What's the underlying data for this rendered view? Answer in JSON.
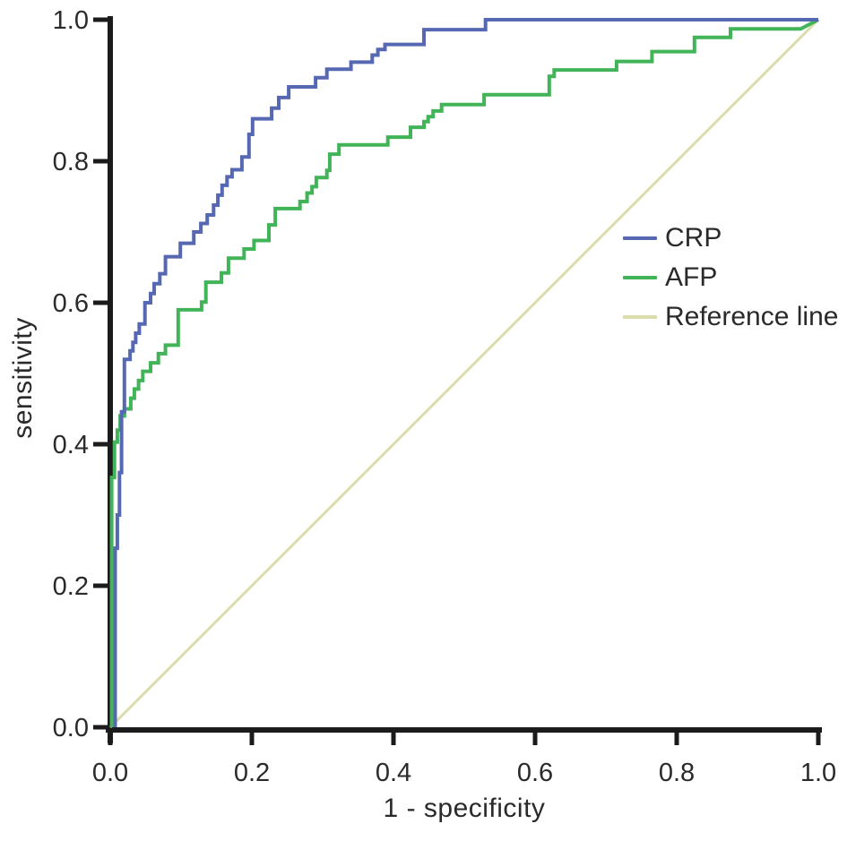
{
  "chart_data": {
    "type": "line",
    "subtype": "roc_curve",
    "title": "",
    "xlabel": "1 - specificity",
    "ylabel": "sensitivity",
    "xlim": [
      0.0,
      1.0
    ],
    "ylim": [
      0.0,
      1.0
    ],
    "x_ticks": [
      0.0,
      0.2,
      0.4,
      0.6,
      0.8,
      1.0
    ],
    "x_tick_labels": [
      "0.0",
      "0.2",
      "0.4",
      "0.6",
      "0.8",
      "1.0"
    ],
    "y_ticks": [
      0.0,
      0.2,
      0.4,
      0.6,
      0.8,
      1.0
    ],
    "y_tick_labels": [
      "0.0",
      "0.2",
      "0.4",
      "0.6",
      "0.8",
      "1.0"
    ],
    "grid": false,
    "legend_position": "inside-right-middle",
    "axis_color": "#1b1b1b",
    "text_color": "#2a2a2a",
    "series": [
      {
        "name": "CRP",
        "color": "#5668b2",
        "stroke_width": 4,
        "points": [
          [
            0.007,
            0.0
          ],
          [
            0.007,
            0.253
          ],
          [
            0.01,
            0.253
          ],
          [
            0.01,
            0.3
          ],
          [
            0.013,
            0.3
          ],
          [
            0.013,
            0.36
          ],
          [
            0.016,
            0.36
          ],
          [
            0.016,
            0.446
          ],
          [
            0.02,
            0.446
          ],
          [
            0.02,
            0.52
          ],
          [
            0.028,
            0.52
          ],
          [
            0.028,
            0.532
          ],
          [
            0.032,
            0.532
          ],
          [
            0.032,
            0.544
          ],
          [
            0.036,
            0.544
          ],
          [
            0.036,
            0.557
          ],
          [
            0.041,
            0.557
          ],
          [
            0.041,
            0.57
          ],
          [
            0.049,
            0.57
          ],
          [
            0.049,
            0.6
          ],
          [
            0.057,
            0.6
          ],
          [
            0.057,
            0.613
          ],
          [
            0.062,
            0.613
          ],
          [
            0.062,
            0.627
          ],
          [
            0.07,
            0.627
          ],
          [
            0.07,
            0.641
          ],
          [
            0.078,
            0.641
          ],
          [
            0.078,
            0.665
          ],
          [
            0.099,
            0.665
          ],
          [
            0.099,
            0.684
          ],
          [
            0.118,
            0.684
          ],
          [
            0.118,
            0.7
          ],
          [
            0.128,
            0.7
          ],
          [
            0.128,
            0.712
          ],
          [
            0.137,
            0.712
          ],
          [
            0.137,
            0.724
          ],
          [
            0.146,
            0.724
          ],
          [
            0.146,
            0.738
          ],
          [
            0.152,
            0.738
          ],
          [
            0.152,
            0.752
          ],
          [
            0.158,
            0.752
          ],
          [
            0.158,
            0.766
          ],
          [
            0.165,
            0.766
          ],
          [
            0.165,
            0.778
          ],
          [
            0.172,
            0.778
          ],
          [
            0.172,
            0.788
          ],
          [
            0.186,
            0.788
          ],
          [
            0.186,
            0.806
          ],
          [
            0.196,
            0.806
          ],
          [
            0.196,
            0.838
          ],
          [
            0.201,
            0.838
          ],
          [
            0.201,
            0.86
          ],
          [
            0.228,
            0.86
          ],
          [
            0.228,
            0.875
          ],
          [
            0.238,
            0.875
          ],
          [
            0.238,
            0.89
          ],
          [
            0.252,
            0.89
          ],
          [
            0.252,
            0.905
          ],
          [
            0.29,
            0.905
          ],
          [
            0.29,
            0.918
          ],
          [
            0.306,
            0.918
          ],
          [
            0.306,
            0.93
          ],
          [
            0.34,
            0.93
          ],
          [
            0.34,
            0.94
          ],
          [
            0.37,
            0.94
          ],
          [
            0.37,
            0.95
          ],
          [
            0.378,
            0.95
          ],
          [
            0.378,
            0.958
          ],
          [
            0.388,
            0.958
          ],
          [
            0.388,
            0.965
          ],
          [
            0.443,
            0.965
          ],
          [
            0.443,
            0.986
          ],
          [
            0.53,
            0.986
          ],
          [
            0.53,
            1.0
          ],
          [
            1.0,
            1.0
          ]
        ]
      },
      {
        "name": "AFP",
        "color": "#41b457",
        "stroke_width": 4,
        "points": [
          [
            0.002,
            0.0
          ],
          [
            0.002,
            0.353
          ],
          [
            0.006,
            0.353
          ],
          [
            0.006,
            0.403
          ],
          [
            0.01,
            0.403
          ],
          [
            0.01,
            0.42
          ],
          [
            0.014,
            0.42
          ],
          [
            0.014,
            0.44
          ],
          [
            0.02,
            0.44
          ],
          [
            0.02,
            0.45
          ],
          [
            0.029,
            0.45
          ],
          [
            0.029,
            0.465
          ],
          [
            0.034,
            0.465
          ],
          [
            0.034,
            0.478
          ],
          [
            0.04,
            0.478
          ],
          [
            0.04,
            0.49
          ],
          [
            0.046,
            0.49
          ],
          [
            0.046,
            0.503
          ],
          [
            0.057,
            0.503
          ],
          [
            0.057,
            0.515
          ],
          [
            0.068,
            0.515
          ],
          [
            0.068,
            0.528
          ],
          [
            0.078,
            0.528
          ],
          [
            0.078,
            0.54
          ],
          [
            0.096,
            0.54
          ],
          [
            0.096,
            0.59
          ],
          [
            0.129,
            0.59
          ],
          [
            0.129,
            0.601
          ],
          [
            0.135,
            0.601
          ],
          [
            0.135,
            0.629
          ],
          [
            0.157,
            0.629
          ],
          [
            0.157,
            0.642
          ],
          [
            0.167,
            0.642
          ],
          [
            0.167,
            0.663
          ],
          [
            0.189,
            0.663
          ],
          [
            0.189,
            0.676
          ],
          [
            0.203,
            0.676
          ],
          [
            0.203,
            0.688
          ],
          [
            0.224,
            0.688
          ],
          [
            0.224,
            0.71
          ],
          [
            0.233,
            0.71
          ],
          [
            0.233,
            0.733
          ],
          [
            0.268,
            0.733
          ],
          [
            0.268,
            0.743
          ],
          [
            0.278,
            0.743
          ],
          [
            0.278,
            0.755
          ],
          [
            0.285,
            0.755
          ],
          [
            0.285,
            0.764
          ],
          [
            0.291,
            0.764
          ],
          [
            0.291,
            0.777
          ],
          [
            0.306,
            0.777
          ],
          [
            0.306,
            0.787
          ],
          [
            0.31,
            0.787
          ],
          [
            0.31,
            0.81
          ],
          [
            0.323,
            0.81
          ],
          [
            0.323,
            0.823
          ],
          [
            0.392,
            0.823
          ],
          [
            0.392,
            0.834
          ],
          [
            0.424,
            0.834
          ],
          [
            0.424,
            0.848
          ],
          [
            0.443,
            0.848
          ],
          [
            0.443,
            0.856
          ],
          [
            0.449,
            0.856
          ],
          [
            0.449,
            0.863
          ],
          [
            0.456,
            0.863
          ],
          [
            0.456,
            0.871
          ],
          [
            0.468,
            0.871
          ],
          [
            0.468,
            0.88
          ],
          [
            0.528,
            0.88
          ],
          [
            0.528,
            0.894
          ],
          [
            0.62,
            0.894
          ],
          [
            0.62,
            0.92
          ],
          [
            0.627,
            0.92
          ],
          [
            0.627,
            0.929
          ],
          [
            0.715,
            0.929
          ],
          [
            0.715,
            0.941
          ],
          [
            0.765,
            0.941
          ],
          [
            0.765,
            0.955
          ],
          [
            0.825,
            0.955
          ],
          [
            0.825,
            0.975
          ],
          [
            0.876,
            0.975
          ],
          [
            0.876,
            0.987
          ],
          [
            0.975,
            0.987
          ],
          [
            1.0,
            1.0
          ]
        ]
      },
      {
        "name": "Reference line",
        "color": "#dadcab",
        "stroke_width": 3,
        "points": [
          [
            0.0,
            0.0
          ],
          [
            1.0,
            1.0
          ]
        ]
      }
    ]
  }
}
